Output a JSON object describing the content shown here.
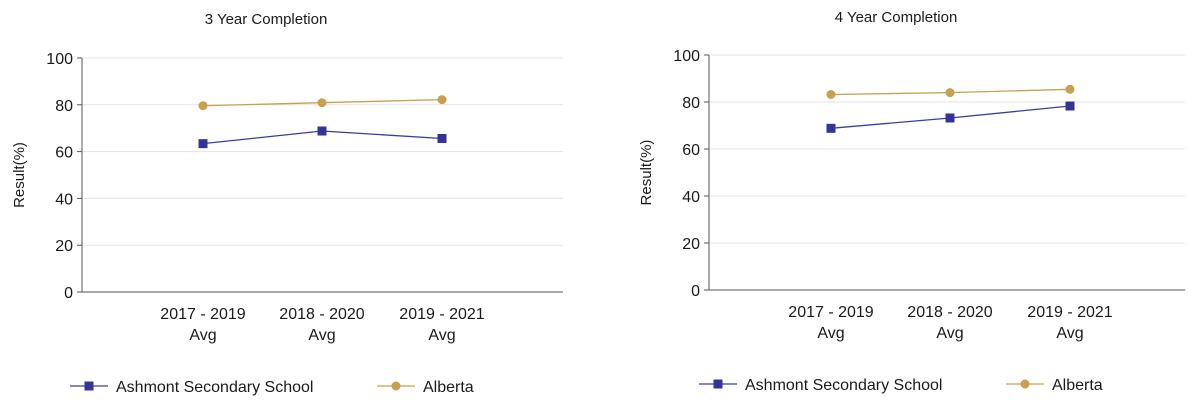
{
  "chart_data": [
    {
      "type": "line",
      "title": "3 Year Completion",
      "xlabel": "",
      "ylabel": "Result(%)",
      "ylim": [
        0,
        100
      ],
      "yticks": [
        "0",
        "20",
        "40",
        "60",
        "80",
        "100"
      ],
      "categories": [
        [
          "2017 - 2019",
          "Avg"
        ],
        [
          "2018 - 2020",
          "Avg"
        ],
        [
          "2019 - 2021",
          "Avg"
        ]
      ],
      "grid": true,
      "legend_position": "bottom",
      "series": [
        {
          "name": "Ashmont Secondary School",
          "values": [
            63.4,
            68.8,
            65.6
          ],
          "color": "#3c3ca0",
          "marker": "square"
        },
        {
          "name": "Alberta",
          "values": [
            79.6,
            80.9,
            82.2
          ],
          "color": "#c8a050",
          "marker": "circle"
        }
      ]
    },
    {
      "type": "line",
      "title": "4 Year Completion",
      "xlabel": "",
      "ylabel": "Result(%)",
      "ylim": [
        0,
        100
      ],
      "yticks": [
        "0",
        "20",
        "40",
        "60",
        "80",
        "100"
      ],
      "categories": [
        [
          "2017 - 2019",
          "Avg"
        ],
        [
          "2018 - 2020",
          "Avg"
        ],
        [
          "2019 - 2021",
          "Avg"
        ]
      ],
      "grid": true,
      "legend_position": "bottom",
      "series": [
        {
          "name": "Ashmont Secondary School",
          "values": [
            68.8,
            73.2,
            78.3
          ],
          "color": "#3c3ca0",
          "marker": "square"
        },
        {
          "name": "Alberta",
          "values": [
            83.2,
            84.0,
            85.4
          ],
          "color": "#c8a050",
          "marker": "circle"
        }
      ]
    }
  ]
}
